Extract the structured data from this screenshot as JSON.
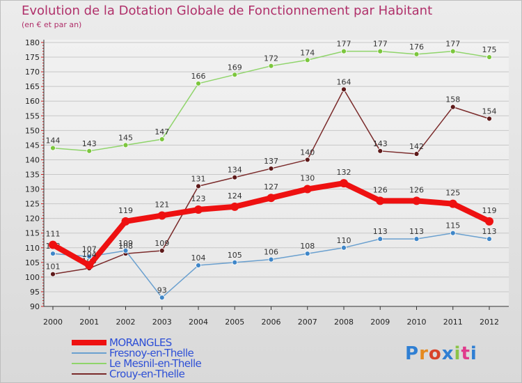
{
  "title": "Evolution de la Dotation Globale de Fonctionnement par Habitant",
  "subtitle": "(en € et par an)",
  "logo": {
    "text": "Proxiti",
    "colors": [
      "#2f7fd3",
      "#e58a1f",
      "#d8432a",
      "#2f7fd3",
      "#8bc34a",
      "#e03a8c",
      "#2f7fd3"
    ]
  },
  "chart_data": {
    "type": "line",
    "x": [
      "2000",
      "2001",
      "2002",
      "2003",
      "2004",
      "2005",
      "2006",
      "2007",
      "2008",
      "2009",
      "2010",
      "2011",
      "2012"
    ],
    "ylim": [
      90,
      180
    ],
    "yticks": [
      90,
      95,
      100,
      105,
      110,
      115,
      120,
      125,
      130,
      135,
      140,
      145,
      150,
      155,
      160,
      165,
      170,
      175,
      180
    ],
    "series": [
      {
        "name": "Le Mesnil-en-Thelle",
        "color": "#8fd46a",
        "point": "#7cc63d",
        "emphasis": false,
        "values": [
          144,
          143,
          145,
          147,
          166,
          169,
          172,
          174,
          177,
          177,
          176,
          177,
          175
        ]
      },
      {
        "name": "Crouy-en-Thelle",
        "color": "#7a2a2a",
        "point": "#5e1a1a",
        "emphasis": false,
        "values": [
          101,
          103,
          108,
          109,
          131,
          134,
          137,
          140,
          164,
          143,
          142,
          158,
          154
        ]
      },
      {
        "name": "Fresnoy-en-Thelle",
        "color": "#6aa0cf",
        "point": "#3f86c8",
        "emphasis": false,
        "values": [
          108,
          107,
          109,
          93,
          104,
          105,
          106,
          108,
          110,
          113,
          113,
          115,
          113
        ]
      },
      {
        "name": "MORANGLES",
        "color": "#ee1111",
        "point": "#ee1111",
        "emphasis": true,
        "values": [
          111,
          104,
          119,
          121,
          123,
          124,
          127,
          130,
          132,
          126,
          126,
          125,
          119
        ]
      }
    ],
    "legend": [
      "MORANGLES",
      "Fresnoy-en-Thelle",
      "Le Mesnil-en-Thelle",
      "Crouy-en-Thelle"
    ]
  }
}
